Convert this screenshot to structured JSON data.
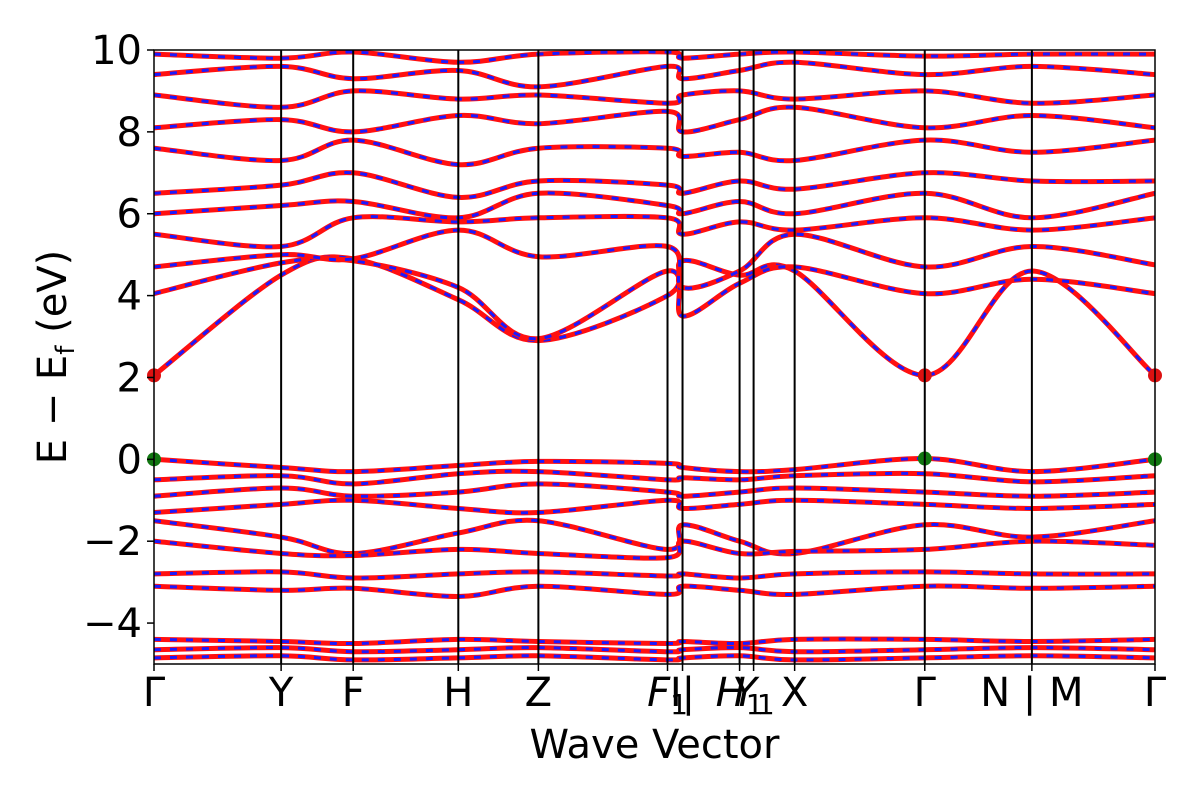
{
  "chart_data": {
    "type": "line",
    "title": "",
    "xlabel": "Wave Vector",
    "ylabel": "E − E_f (eV)",
    "ylabel_main": "E − E",
    "ylabel_sub": "f",
    "ylabel_unit": " (eV)",
    "ylim": [
      -5,
      10
    ],
    "yticks": [
      -4,
      -2,
      0,
      2,
      4,
      6,
      8,
      10
    ],
    "ytick_labels": [
      "−4",
      "−2",
      "0",
      "2",
      "4",
      "6",
      "8",
      "10"
    ],
    "xlim": [
      0,
      1.0
    ],
    "kpoints": [
      {
        "label": "Γ",
        "x": 0.0
      },
      {
        "label": "Y",
        "x": 0.127
      },
      {
        "label": "F",
        "x": 0.199
      },
      {
        "label": "H",
        "x": 0.304
      },
      {
        "label": "Z",
        "x": 0.384
      },
      {
        "label": "F",
        "sub": "1",
        "x": 0.513
      },
      {
        "label": "I|",
        "x": 0.528
      },
      {
        "label": "H",
        "sub": "1",
        "x": 0.585
      },
      {
        "label": "Y",
        "sub": "1",
        "x": 0.599
      },
      {
        "label": "X",
        "x": 0.64
      },
      {
        "label": "Γ",
        "x": 0.77
      },
      {
        "label": "N | M",
        "x": 0.877
      },
      {
        "label": "Γ",
        "x": 1.0
      }
    ],
    "series_styles": {
      "up": "#ff1010",
      "down": "#1a1aff"
    },
    "special_points": [
      {
        "x": 0.0,
        "y": 2.05,
        "color": "#dd1111"
      },
      {
        "x": 0.77,
        "y": 2.05,
        "color": "#dd1111"
      },
      {
        "x": 1.0,
        "y": 2.05,
        "color": "#dd1111"
      },
      {
        "x": 0.0,
        "y": 0.0,
        "color": "#117711"
      },
      {
        "x": 0.77,
        "y": 0.02,
        "color": "#117711"
      },
      {
        "x": 1.0,
        "y": 0.0,
        "color": "#117711"
      }
    ],
    "bands": [
      {
        "x": [
          0,
          0.127,
          0.199,
          0.304,
          0.384,
          0.513,
          0.528,
          0.585,
          0.64,
          0.77,
          0.877,
          1.0
        ],
        "y": [
          2.05,
          4.5,
          4.9,
          3.9,
          2.9,
          4.0,
          4.85,
          4.5,
          4.6,
          2.05,
          4.6,
          2.05
        ]
      },
      {
        "x": [
          0,
          0.127,
          0.199,
          0.304,
          0.384,
          0.513,
          0.528,
          0.585,
          0.64,
          0.77,
          0.877,
          1.0
        ],
        "y": [
          4.05,
          4.8,
          4.85,
          4.2,
          2.95,
          4.6,
          3.5,
          4.3,
          4.7,
          4.05,
          4.4,
          4.05
        ]
      },
      {
        "x": [
          0,
          0.127,
          0.199,
          0.304,
          0.384,
          0.513,
          0.528,
          0.585,
          0.64,
          0.77,
          0.877,
          1.0
        ],
        "y": [
          4.7,
          5.0,
          4.9,
          5.6,
          4.95,
          5.2,
          4.2,
          4.6,
          5.5,
          4.7,
          5.2,
          4.75
        ]
      },
      {
        "x": [
          0,
          0.127,
          0.199,
          0.304,
          0.384,
          0.513,
          0.528,
          0.585,
          0.64,
          0.77,
          0.877,
          1.0
        ],
        "y": [
          5.5,
          5.2,
          5.9,
          5.8,
          5.9,
          5.9,
          5.5,
          5.8,
          5.6,
          5.9,
          5.6,
          5.9
        ]
      },
      {
        "x": [
          0,
          0.127,
          0.199,
          0.304,
          0.384,
          0.513,
          0.528,
          0.585,
          0.64,
          0.77,
          0.877,
          1.0
        ],
        "y": [
          6.0,
          6.2,
          6.3,
          5.9,
          6.5,
          6.2,
          6.0,
          6.3,
          6.0,
          6.5,
          5.9,
          6.5
        ]
      },
      {
        "x": [
          0,
          0.127,
          0.199,
          0.304,
          0.384,
          0.513,
          0.528,
          0.585,
          0.64,
          0.77,
          0.877,
          1.0
        ],
        "y": [
          6.5,
          6.7,
          7.0,
          6.4,
          6.8,
          6.7,
          6.5,
          6.8,
          6.6,
          7.0,
          6.8,
          6.8
        ]
      },
      {
        "x": [
          0,
          0.127,
          0.199,
          0.304,
          0.384,
          0.513,
          0.528,
          0.585,
          0.64,
          0.77,
          0.877,
          1.0
        ],
        "y": [
          7.6,
          7.3,
          7.8,
          7.2,
          7.6,
          7.6,
          7.4,
          7.5,
          7.3,
          7.8,
          7.5,
          7.8
        ]
      },
      {
        "x": [
          0,
          0.127,
          0.199,
          0.304,
          0.384,
          0.513,
          0.528,
          0.585,
          0.64,
          0.77,
          0.877,
          1.0
        ],
        "y": [
          8.1,
          8.3,
          8.0,
          8.4,
          8.2,
          8.5,
          8.0,
          8.3,
          8.6,
          8.1,
          8.4,
          8.1
        ]
      },
      {
        "x": [
          0,
          0.127,
          0.199,
          0.304,
          0.384,
          0.513,
          0.528,
          0.585,
          0.64,
          0.77,
          0.877,
          1.0
        ],
        "y": [
          8.9,
          8.6,
          9.0,
          8.8,
          8.9,
          8.7,
          8.9,
          9.0,
          8.8,
          9.0,
          8.7,
          8.9
        ]
      },
      {
        "x": [
          0,
          0.127,
          0.199,
          0.304,
          0.384,
          0.513,
          0.528,
          0.585,
          0.64,
          0.77,
          0.877,
          1.0
        ],
        "y": [
          9.4,
          9.6,
          9.3,
          9.5,
          9.1,
          9.6,
          9.3,
          9.5,
          9.7,
          9.4,
          9.6,
          9.4
        ]
      },
      {
        "x": [
          0,
          0.127,
          0.199,
          0.304,
          0.384,
          0.513,
          0.528,
          0.585,
          0.64,
          0.77,
          0.877,
          1.0
        ],
        "y": [
          9.9,
          9.8,
          9.95,
          9.7,
          9.9,
          9.95,
          9.8,
          9.9,
          9.95,
          9.85,
          9.9,
          9.9
        ]
      },
      {
        "x": [
          0,
          0.127,
          0.199,
          0.304,
          0.384,
          0.513,
          0.528,
          0.585,
          0.64,
          0.77,
          0.877,
          1.0
        ],
        "y": [
          0.0,
          -0.2,
          -0.3,
          -0.15,
          -0.05,
          -0.1,
          -0.2,
          -0.3,
          -0.25,
          0.02,
          -0.3,
          0.0
        ]
      },
      {
        "x": [
          0,
          0.127,
          0.199,
          0.304,
          0.384,
          0.513,
          0.528,
          0.585,
          0.64,
          0.77,
          0.877,
          1.0
        ],
        "y": [
          -0.5,
          -0.4,
          -0.6,
          -0.35,
          -0.3,
          -0.5,
          -0.45,
          -0.5,
          -0.4,
          -0.35,
          -0.55,
          -0.4
        ]
      },
      {
        "x": [
          0,
          0.127,
          0.199,
          0.304,
          0.384,
          0.513,
          0.528,
          0.585,
          0.64,
          0.77,
          0.877,
          1.0
        ],
        "y": [
          -0.9,
          -0.7,
          -0.9,
          -0.8,
          -0.6,
          -0.8,
          -0.9,
          -0.8,
          -0.7,
          -0.8,
          -0.9,
          -0.8
        ]
      },
      {
        "x": [
          0,
          0.127,
          0.199,
          0.304,
          0.384,
          0.513,
          0.528,
          0.585,
          0.64,
          0.77,
          0.877,
          1.0
        ],
        "y": [
          -1.3,
          -1.1,
          -1.0,
          -1.2,
          -1.3,
          -1.0,
          -1.2,
          -1.1,
          -1.0,
          -1.1,
          -1.2,
          -1.1
        ]
      },
      {
        "x": [
          0,
          0.127,
          0.199,
          0.304,
          0.384,
          0.513,
          0.528,
          0.585,
          0.64,
          0.77,
          0.877,
          1.0
        ],
        "y": [
          -1.5,
          -1.9,
          -2.3,
          -1.8,
          -1.5,
          -2.2,
          -1.6,
          -2.0,
          -2.3,
          -1.6,
          -1.9,
          -1.5
        ]
      },
      {
        "x": [
          0,
          0.127,
          0.199,
          0.304,
          0.384,
          0.513,
          0.528,
          0.585,
          0.64,
          0.77,
          0.877,
          1.0
        ],
        "y": [
          -2.0,
          -2.3,
          -2.35,
          -2.2,
          -2.3,
          -2.4,
          -2.0,
          -2.3,
          -2.25,
          -2.2,
          -2.0,
          -2.1
        ]
      },
      {
        "x": [
          0,
          0.127,
          0.199,
          0.304,
          0.384,
          0.513,
          0.528,
          0.585,
          0.64,
          0.77,
          0.877,
          1.0
        ],
        "y": [
          -2.8,
          -2.75,
          -2.9,
          -2.8,
          -2.75,
          -2.85,
          -2.8,
          -2.9,
          -2.8,
          -2.75,
          -2.8,
          -2.8
        ]
      },
      {
        "x": [
          0,
          0.127,
          0.199,
          0.304,
          0.384,
          0.513,
          0.528,
          0.585,
          0.64,
          0.77,
          0.877,
          1.0
        ],
        "y": [
          -3.1,
          -3.2,
          -3.15,
          -3.35,
          -3.1,
          -3.3,
          -3.1,
          -3.2,
          -3.3,
          -3.1,
          -3.15,
          -3.1
        ]
      },
      {
        "x": [
          0,
          0.127,
          0.199,
          0.304,
          0.384,
          0.513,
          0.528,
          0.585,
          0.64,
          0.77,
          0.877,
          1.0
        ],
        "y": [
          -4.4,
          -4.45,
          -4.5,
          -4.4,
          -4.45,
          -4.5,
          -4.45,
          -4.5,
          -4.4,
          -4.4,
          -4.45,
          -4.4
        ]
      },
      {
        "x": [
          0,
          0.127,
          0.199,
          0.304,
          0.384,
          0.513,
          0.528,
          0.585,
          0.64,
          0.77,
          0.877,
          1.0
        ],
        "y": [
          -4.65,
          -4.6,
          -4.7,
          -4.65,
          -4.6,
          -4.7,
          -4.65,
          -4.6,
          -4.7,
          -4.65,
          -4.6,
          -4.65
        ]
      },
      {
        "x": [
          0,
          0.127,
          0.199,
          0.304,
          0.384,
          0.513,
          0.528,
          0.585,
          0.64,
          0.77,
          0.877,
          1.0
        ],
        "y": [
          -4.85,
          -4.8,
          -4.9,
          -4.85,
          -4.8,
          -4.9,
          -4.85,
          -4.8,
          -4.9,
          -4.85,
          -4.8,
          -4.85
        ]
      }
    ]
  }
}
